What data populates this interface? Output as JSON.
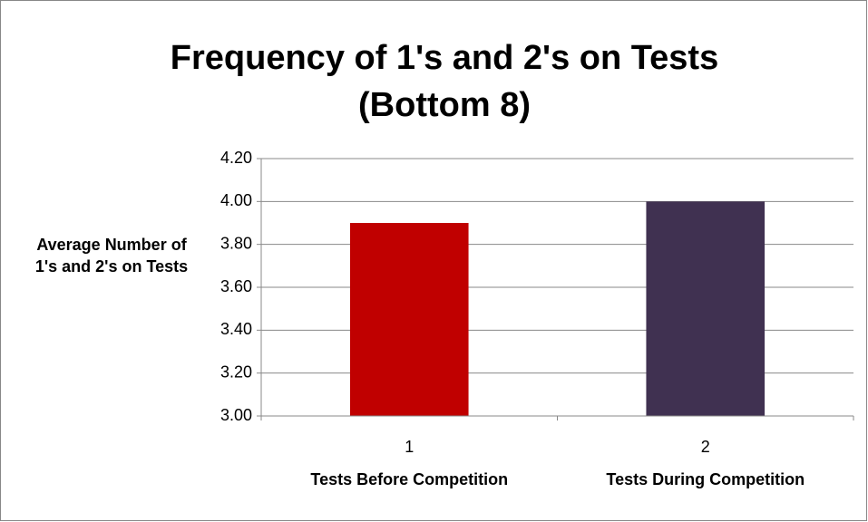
{
  "chart_data": {
    "type": "bar",
    "title": "Frequency of 1's and 2's on Tests (Bottom 8)",
    "y_label": "Average Number of 1's and 2's on Tests",
    "categories": [
      "1",
      "2"
    ],
    "category_labels": [
      "Tests Before Competition",
      "Tests During Competition"
    ],
    "values": [
      3.9,
      4.0
    ],
    "colors": [
      "#c00000",
      "#403151"
    ],
    "ylim": [
      3.0,
      4.2
    ],
    "yticks": [
      {
        "value": 3.0,
        "label": "3.00"
      },
      {
        "value": 3.2,
        "label": "3.20"
      },
      {
        "value": 3.4,
        "label": "3.40"
      },
      {
        "value": 3.6,
        "label": "3.60"
      },
      {
        "value": 3.8,
        "label": "3.80"
      },
      {
        "value": 4.0,
        "label": "4.00"
      },
      {
        "value": 4.2,
        "label": "4.20"
      }
    ],
    "grid": true
  }
}
